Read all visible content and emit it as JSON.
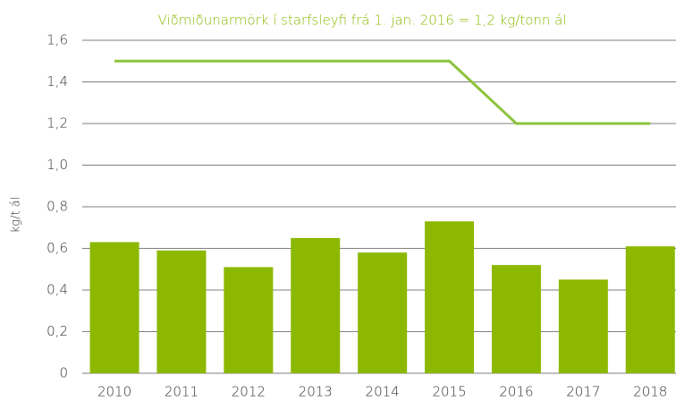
{
  "chart_data": {
    "type": "bar",
    "annotation": "Viðmiðunarmörk í starfsleyfi frá 1. jan. 2016  = 1,2 kg/tonn ál",
    "y_label": "kg/t ál",
    "categories": [
      "2010",
      "2011",
      "2012",
      "2013",
      "2014",
      "2015",
      "2016",
      "2017",
      "2018"
    ],
    "series": [
      {
        "type": "bar",
        "color": "#8cb800",
        "values": [
          0.63,
          0.59,
          0.51,
          0.65,
          0.58,
          0.73,
          0.52,
          0.45,
          0.61
        ]
      },
      {
        "type": "line",
        "color": "#8cc43c",
        "values": [
          1.5,
          1.5,
          1.5,
          1.5,
          1.5,
          1.5,
          1.2,
          1.2,
          1.2
        ]
      }
    ],
    "ylim": [
      0,
      1.6
    ],
    "yticks": [
      0,
      {
        "value": 0.2,
        "label": "0,2"
      },
      {
        "value": 0.4,
        "label": "0,4"
      },
      {
        "value": 0.6,
        "label": "0,6"
      },
      {
        "value": 0.8,
        "label": "0,8"
      },
      {
        "value": 1.0,
        "label": "1,0"
      },
      {
        "value": 1.2,
        "label": "1,2"
      },
      {
        "value": 1.4,
        "label": "1,4"
      },
      {
        "value": 1.6,
        "label": "1,6"
      }
    ],
    "grid": true
  }
}
